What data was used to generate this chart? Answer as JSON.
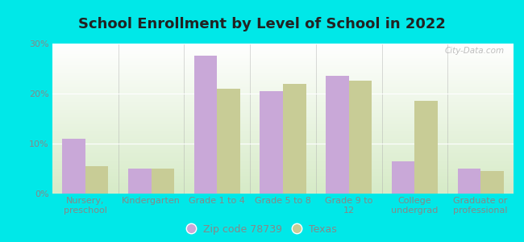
{
  "title": "School Enrollment by Level of School in 2022",
  "categories": [
    "Nursery,\npreschool",
    "Kindergarten",
    "Grade 1 to 4",
    "Grade 5 to 8",
    "Grade 9 to\n12",
    "College\nundergrad",
    "Graduate or\nprofessional"
  ],
  "zip_values": [
    11.0,
    5.0,
    27.5,
    20.5,
    23.5,
    6.5,
    5.0
  ],
  "texas_values": [
    5.5,
    5.0,
    21.0,
    22.0,
    22.5,
    18.5,
    4.5
  ],
  "zip_color": "#c9a8d8",
  "texas_color": "#c8cc96",
  "background_outer": "#00e8e8",
  "background_inner_top": "#ffffff",
  "background_inner_bottom": "#d4e8c8",
  "ylim": [
    0,
    30
  ],
  "yticks": [
    0,
    10,
    20,
    30
  ],
  "ytick_labels": [
    "0%",
    "10%",
    "20%",
    "30%"
  ],
  "legend_zip_label": "Zip code 78739",
  "legend_texas_label": "Texas",
  "bar_width": 0.35,
  "title_fontsize": 13,
  "tick_fontsize": 8,
  "legend_fontsize": 9,
  "watermark": "City-Data.com",
  "label_color": "#888888"
}
